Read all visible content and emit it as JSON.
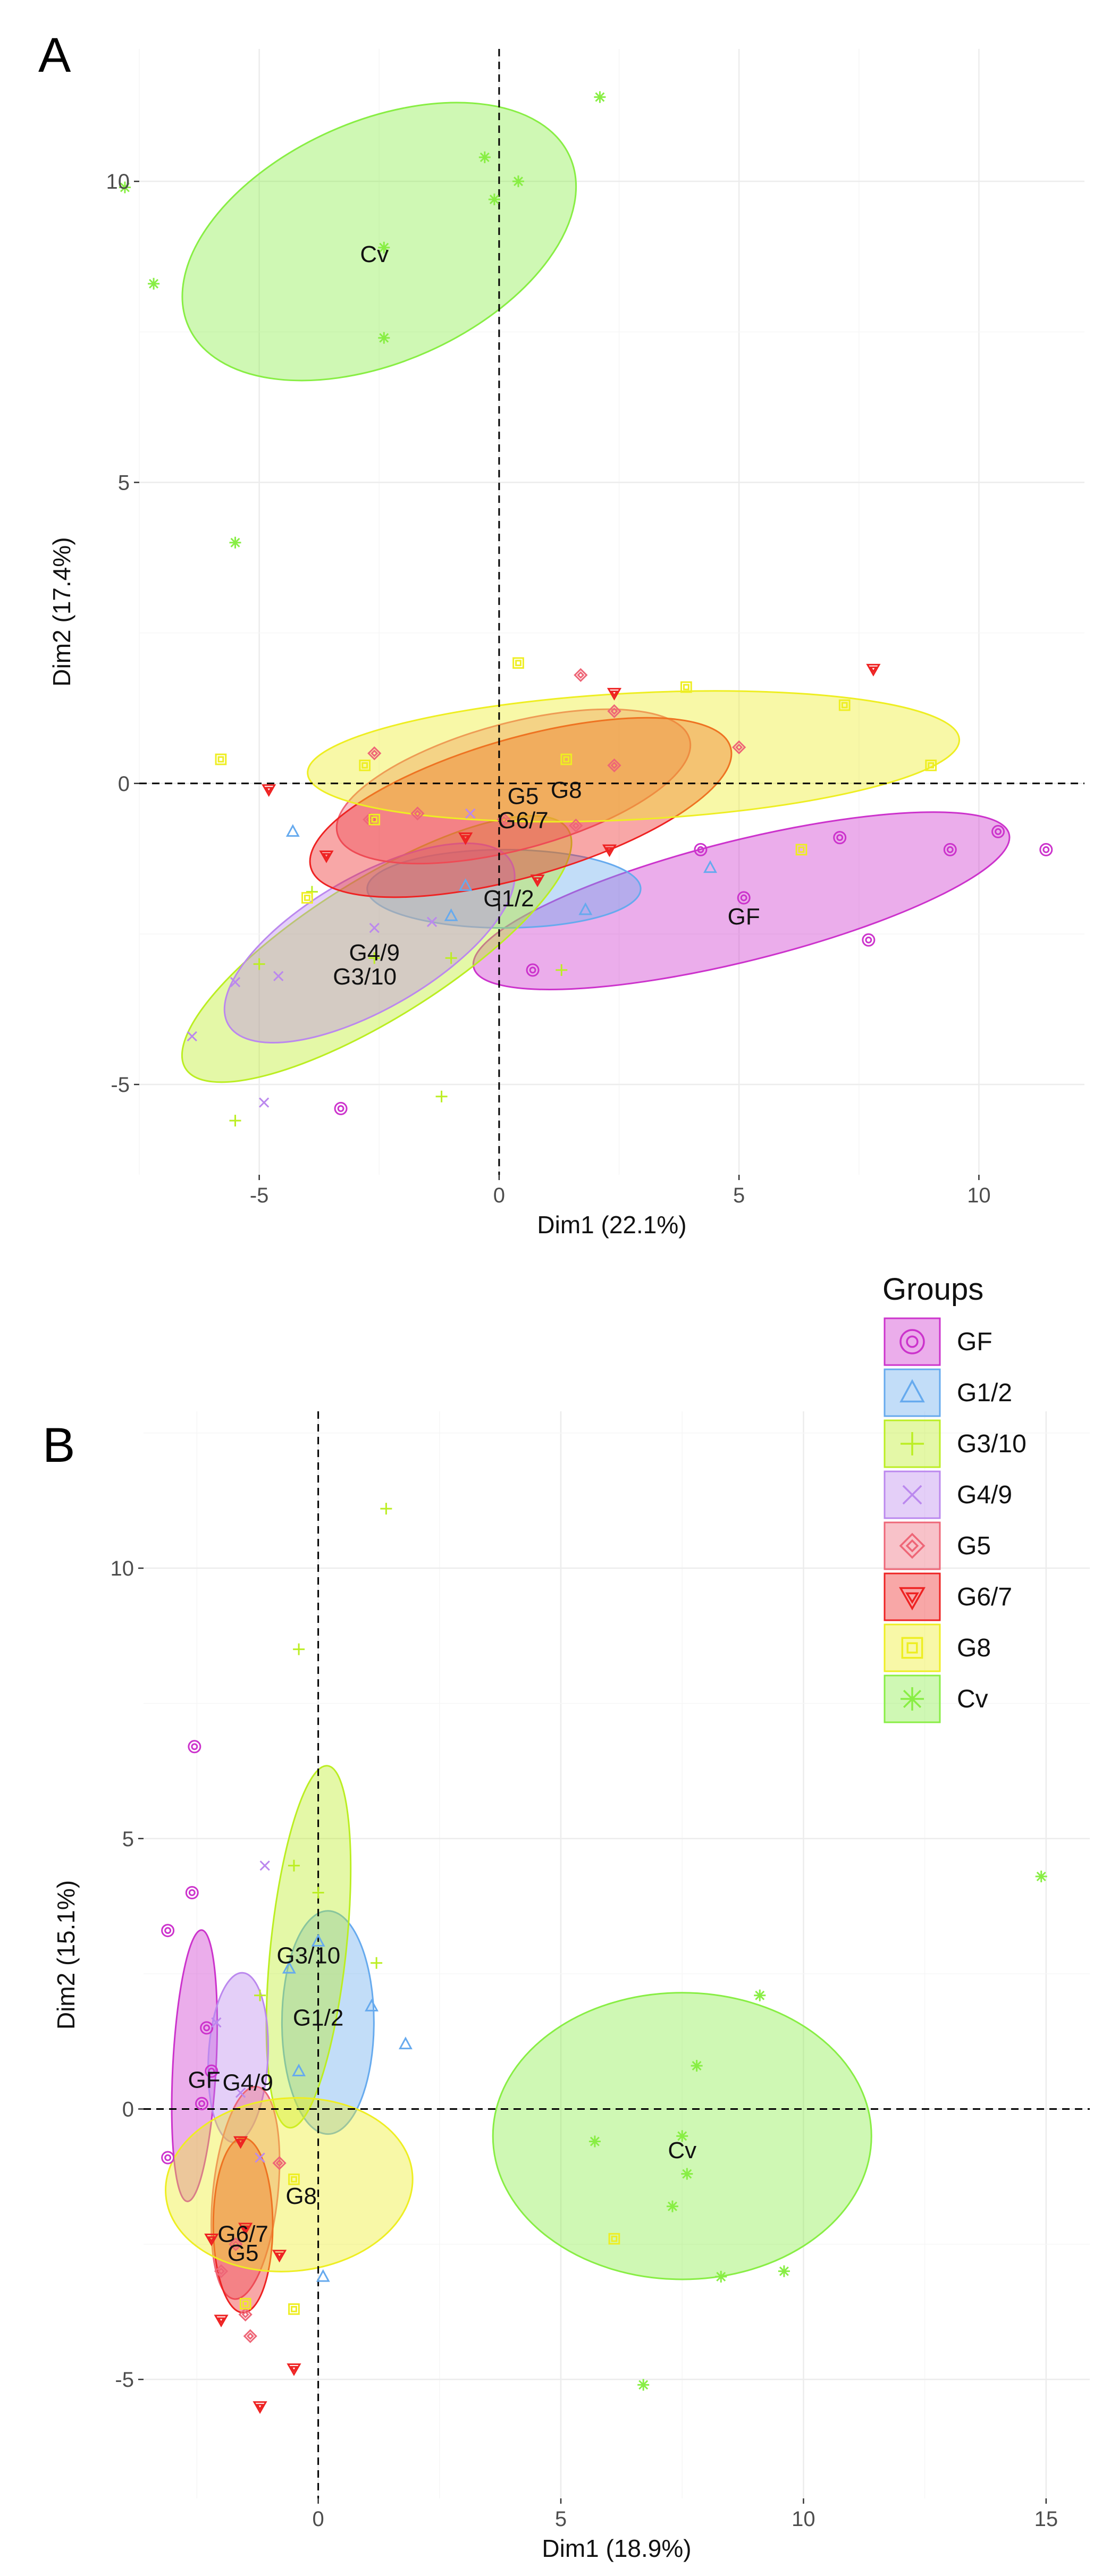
{
  "chart_data": [
    {
      "panel_label": "A",
      "type": "scatter",
      "title": "",
      "xlabel": "Dim1 (22.1%)",
      "ylabel": "Dim2 (17.4%)",
      "xlim": [
        -7.5,
        12.2
      ],
      "ylim": [
        -6.5,
        12.2
      ],
      "xticks": [
        -5,
        0,
        5,
        10
      ],
      "yticks": [
        -5,
        0,
        5,
        10
      ],
      "xticklabels": [
        "-5",
        "0",
        "5",
        "10"
      ],
      "yticklabels": [
        "-5",
        "0",
        "5",
        "10"
      ],
      "grid": true,
      "legend": "none",
      "series": [
        {
          "name": "GF",
          "color": "#cc33cc",
          "marker": "circle",
          "ellipse": {
            "cx": 5.05,
            "cy": -1.95,
            "rx": 5.75,
            "ry": 1.0,
            "angle": 14
          },
          "centroid_label": {
            "text": "GF",
            "x": 5.1,
            "y": -2.2
          },
          "points": [
            [
              4.2,
              -1.1
            ],
            [
              7.1,
              -0.9
            ],
            [
              9.4,
              -1.1
            ],
            [
              10.4,
              -0.8
            ],
            [
              11.4,
              -1.1
            ],
            [
              7.7,
              -2.6
            ],
            [
              0.7,
              -3.1
            ],
            [
              -3.3,
              -5.4
            ],
            [
              5.1,
              -1.9
            ]
          ]
        },
        {
          "name": "G1/2",
          "color": "#66aaee",
          "marker": "triangle",
          "ellipse": {
            "cx": 0.1,
            "cy": -1.75,
            "rx": 2.85,
            "ry": 0.65,
            "angle": 0
          },
          "centroid_label": {
            "text": "G1/2",
            "x": 0.2,
            "y": -1.9
          },
          "points": [
            [
              -4.3,
              -0.8
            ],
            [
              4.4,
              -1.4
            ],
            [
              1.8,
              -2.1
            ],
            [
              -1.0,
              -2.2
            ],
            [
              -0.7,
              -1.7
            ]
          ]
        },
        {
          "name": "G3/10",
          "color": "#bbee22",
          "marker": "plus",
          "ellipse": {
            "cx": -2.55,
            "cy": -2.75,
            "rx": 4.7,
            "ry": 1.15,
            "angle": 32
          },
          "centroid_label": {
            "text": "G3/10",
            "x": -2.8,
            "y": -3.2
          },
          "points": [
            [
              -5.0,
              -3.0
            ],
            [
              -5.5,
              -5.6
            ],
            [
              -1.2,
              -5.2
            ],
            [
              1.3,
              -3.1
            ],
            [
              -3.9,
              -1.8
            ],
            [
              -2.6,
              -2.9
            ],
            [
              -1.0,
              -2.9
            ]
          ]
        },
        {
          "name": "G4/9",
          "color": "#bb88ee",
          "marker": "cross",
          "ellipse": {
            "cx": -2.7,
            "cy": -2.65,
            "rx": 3.4,
            "ry": 1.1,
            "angle": 30
          },
          "centroid_label": {
            "text": "G4/9",
            "x": -2.6,
            "y": -2.8
          },
          "points": [
            [
              -6.4,
              -4.2
            ],
            [
              -4.9,
              -5.3
            ],
            [
              -5.5,
              -3.3
            ],
            [
              -4.6,
              -3.2
            ],
            [
              -2.6,
              -2.4
            ],
            [
              -1.4,
              -2.3
            ],
            [
              -0.6,
              -0.5
            ]
          ]
        },
        {
          "name": "G5",
          "color": "#ee6677",
          "marker": "diamond",
          "ellipse": {
            "cx": 0.3,
            "cy": -0.05,
            "rx": 3.8,
            "ry": 1.05,
            "angle": 15
          },
          "centroid_label": {
            "text": "G5",
            "x": 0.5,
            "y": -0.2
          },
          "points": [
            [
              -2.6,
              0.5
            ],
            [
              -2.7,
              -0.6
            ],
            [
              -1.7,
              -0.5
            ],
            [
              1.7,
              1.8
            ],
            [
              2.4,
              1.2
            ],
            [
              2.4,
              0.3
            ],
            [
              5.0,
              0.6
            ],
            [
              1.6,
              -0.7
            ],
            [
              0.1,
              -0.6
            ]
          ]
        },
        {
          "name": "G6/7",
          "color": "#ee2222",
          "marker": "triangle-down",
          "ellipse": {
            "cx": 0.45,
            "cy": -0.4,
            "rx": 4.55,
            "ry": 1.15,
            "angle": 16
          },
          "centroid_label": {
            "text": "G6/7",
            "x": 0.5,
            "y": -0.6
          },
          "points": [
            [
              -4.8,
              -0.1
            ],
            [
              -3.6,
              -1.2
            ],
            [
              -0.7,
              -0.9
            ],
            [
              0.8,
              -1.6
            ],
            [
              2.3,
              -1.1
            ],
            [
              2.4,
              1.5
            ],
            [
              7.8,
              1.9
            ]
          ]
        },
        {
          "name": "G8",
          "color": "#eeee22",
          "marker": "square",
          "ellipse": {
            "cx": 2.8,
            "cy": 0.45,
            "rx": 6.8,
            "ry": 1.05,
            "angle": 3
          },
          "centroid_label": {
            "text": "G8",
            "x": 1.4,
            "y": -0.1
          },
          "points": [
            [
              -5.8,
              0.4
            ],
            [
              -2.8,
              0.3
            ],
            [
              -2.6,
              -0.6
            ],
            [
              0.4,
              2.0
            ],
            [
              3.9,
              1.6
            ],
            [
              7.2,
              1.3
            ],
            [
              9.0,
              0.3
            ],
            [
              6.3,
              -1.1
            ],
            [
              1.4,
              0.4
            ],
            [
              -4.0,
              -1.9
            ]
          ]
        },
        {
          "name": "Cv",
          "color": "#88ee44",
          "marker": "star",
          "ellipse": {
            "cx": -2.5,
            "cy": 9.0,
            "rx": 4.35,
            "ry": 2.0,
            "angle": 24
          },
          "centroid_label": {
            "text": "Cv",
            "x": -2.6,
            "y": 8.8
          },
          "points": [
            [
              -7.8,
              9.9
            ],
            [
              -7.2,
              8.3
            ],
            [
              -2.4,
              8.9
            ],
            [
              -2.4,
              7.4
            ],
            [
              -0.3,
              10.4
            ],
            [
              0.4,
              10.0
            ],
            [
              -0.1,
              9.7
            ],
            [
              2.1,
              11.4
            ],
            [
              -5.5,
              4.0
            ]
          ]
        }
      ]
    },
    {
      "panel_label": "B",
      "type": "scatter",
      "title": "",
      "xlabel": "Dim1 (18.9%)",
      "ylabel": "Dim2 (15.1%)",
      "xlim": [
        -3.6,
        15.9
      ],
      "ylim": [
        -7.2,
        12.9
      ],
      "xticks": [
        0,
        5,
        10,
        15
      ],
      "yticks": [
        -5,
        0,
        5,
        10
      ],
      "xticklabels": [
        "0",
        "5",
        "10",
        "15"
      ],
      "yticklabels": [
        "-5",
        "0",
        "5",
        "10"
      ],
      "grid": true,
      "legend": "top-right",
      "legend_title": "Groups",
      "series": [
        {
          "name": "GF",
          "color": "#cc33cc",
          "marker": "circle",
          "ellipse": {
            "cx": -2.55,
            "cy": 0.8,
            "rx": 2.8,
            "ry": 0.4,
            "angle": 87
          },
          "centroid_label": {
            "text": "GF",
            "x": -2.35,
            "y": 0.55
          },
          "points": [
            [
              -2.55,
              6.7
            ],
            [
              -2.6,
              4.0
            ],
            [
              -3.1,
              3.3
            ],
            [
              -2.3,
              1.5
            ],
            [
              -2.2,
              0.7
            ],
            [
              -3.1,
              -0.9
            ],
            [
              -2.4,
              0.1
            ]
          ]
        },
        {
          "name": "G1/2",
          "color": "#66aaee",
          "marker": "triangle",
          "ellipse": {
            "cx": 0.2,
            "cy": 1.6,
            "rx": 2.3,
            "ry": 0.85,
            "angle": 90
          },
          "centroid_label": {
            "text": "G1/2",
            "x": 0.0,
            "y": 1.7
          },
          "points": [
            [
              1.1,
              1.9
            ],
            [
              1.8,
              1.2
            ],
            [
              -0.6,
              2.6
            ],
            [
              0.0,
              3.1
            ],
            [
              0.1,
              -3.1
            ],
            [
              -0.4,
              0.7
            ]
          ]
        },
        {
          "name": "G3/10",
          "color": "#bbee22",
          "marker": "plus",
          "ellipse": {
            "cx": -0.2,
            "cy": 3.0,
            "rx": 3.75,
            "ry": 0.7,
            "angle": 84
          },
          "centroid_label": {
            "text": "G3/10",
            "x": -0.2,
            "y": 2.85
          },
          "points": [
            [
              -0.4,
              8.5
            ],
            [
              1.4,
              11.1
            ],
            [
              1.2,
              2.7
            ],
            [
              -1.2,
              2.1
            ],
            [
              -0.5,
              4.5
            ],
            [
              0.0,
              4.0
            ]
          ]
        },
        {
          "name": "G4/9",
          "color": "#bb88ee",
          "marker": "cross",
          "ellipse": {
            "cx": -1.65,
            "cy": 0.95,
            "rx": 1.75,
            "ry": 0.55,
            "angle": 87
          },
          "centroid_label": {
            "text": "G4/9",
            "x": -1.45,
            "y": 0.5
          },
          "points": [
            [
              -1.1,
              4.5
            ],
            [
              -2.1,
              1.6
            ],
            [
              -1.6,
              0.3
            ],
            [
              -1.2,
              -0.9
            ]
          ]
        },
        {
          "name": "G5",
          "color": "#ee6677",
          "marker": "diamond",
          "ellipse": {
            "cx": -1.5,
            "cy": -1.55,
            "rx": 2.2,
            "ry": 0.6,
            "angle": 84
          },
          "centroid_label": {
            "text": "G5",
            "x": -1.55,
            "y": -2.65
          },
          "points": [
            [
              -1.4,
              -4.2
            ],
            [
              -2.0,
              -3.0
            ],
            [
              -1.7,
              -2.5
            ],
            [
              -1.5,
              -3.8
            ],
            [
              -0.8,
              -1.0
            ]
          ]
        },
        {
          "name": "G6/7",
          "color": "#ee2222",
          "marker": "triangle-down",
          "ellipse": {
            "cx": -1.55,
            "cy": -2.15,
            "rx": 1.8,
            "ry": 0.55,
            "angle": 90
          },
          "centroid_label": {
            "text": "G6/7",
            "x": -1.55,
            "y": -2.3
          },
          "points": [
            [
              -0.5,
              -4.8
            ],
            [
              -1.2,
              -5.5
            ],
            [
              -2.0,
              -3.9
            ],
            [
              -1.5,
              -2.2
            ],
            [
              -0.8,
              -2.7
            ],
            [
              -2.2,
              -2.4
            ],
            [
              -1.6,
              -0.6
            ]
          ]
        },
        {
          "name": "G8",
          "color": "#eeee22",
          "marker": "square",
          "ellipse": {
            "cx": -0.6,
            "cy": -1.4,
            "rx": 2.55,
            "ry": 1.6,
            "angle": 5
          },
          "centroid_label": {
            "text": "G8",
            "x": -0.35,
            "y": -1.6
          },
          "points": [
            [
              -1.5,
              -3.6
            ],
            [
              -0.5,
              -3.7
            ],
            [
              -0.5,
              -1.3
            ],
            [
              6.1,
              -2.4
            ]
          ]
        },
        {
          "name": "Cv",
          "color": "#88ee44",
          "marker": "star",
          "ellipse": {
            "cx": 7.5,
            "cy": -0.5,
            "rx": 3.9,
            "ry": 2.65,
            "angle": 0
          },
          "centroid_label": {
            "text": "Cv",
            "x": 7.5,
            "y": -0.75
          },
          "points": [
            [
              14.9,
              4.3
            ],
            [
              9.1,
              2.1
            ],
            [
              7.8,
              0.8
            ],
            [
              5.7,
              -0.6
            ],
            [
              7.6,
              -1.2
            ],
            [
              7.3,
              -1.8
            ],
            [
              9.6,
              -3.0
            ],
            [
              8.3,
              -3.1
            ],
            [
              6.7,
              -5.1
            ],
            [
              7.5,
              -0.5
            ]
          ]
        }
      ]
    }
  ]
}
